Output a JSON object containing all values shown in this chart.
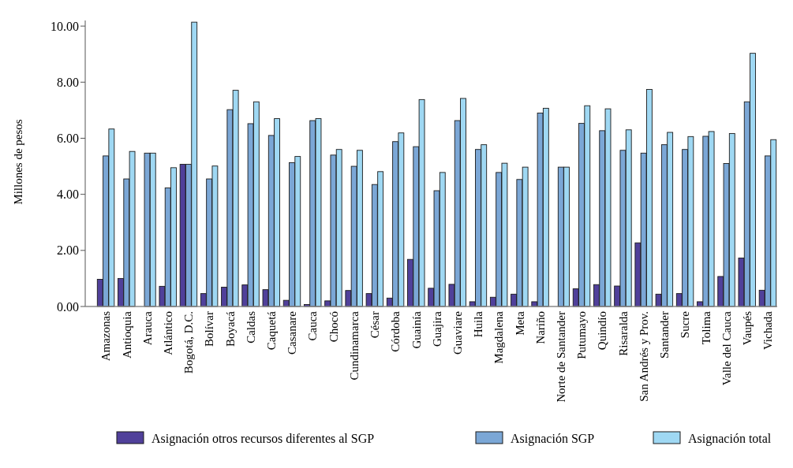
{
  "chart_data": {
    "type": "bar",
    "ylabel": "Millones de pesos",
    "categories": [
      "Amazonas",
      "Antioquia",
      "Arauca",
      "Atlántico",
      "Bogotá, D.C.",
      "Bolívar",
      "Boyacá",
      "Caldas",
      "Caquetá",
      "Casanare",
      "Cauca",
      "Chocó",
      "Cundinamarca",
      "César",
      "Córdoba",
      "Guainía",
      "Guajira",
      "Guaviare",
      "Huila",
      "Magdalena",
      "Meta",
      "Nariño",
      "Norte de Santander",
      "Putumayo",
      "Quindío",
      "Risaralda",
      "San Andrés y Prov.",
      "Santander",
      "Sucre",
      "Tolima",
      "Valle del Cauca",
      "Vaupés",
      "Vichada"
    ],
    "series": [
      {
        "name": "Asignación otros recursos diferentes al SGP",
        "color": "#50409a",
        "values": [
          0.97,
          1.0,
          0,
          0.72,
          5.07,
          0.46,
          0.69,
          0.77,
          0.6,
          0.22,
          0.07,
          0.2,
          0.57,
          0.46,
          0.3,
          1.68,
          0.65,
          0.79,
          0.17,
          0.33,
          0.44,
          0.17,
          0,
          0.63,
          0.78,
          0.73,
          2.27,
          0.44,
          0.46,
          0.17,
          1.07,
          1.73,
          0.58
        ]
      },
      {
        "name": "Asignación SGP",
        "color": "#7ba7d6",
        "values": [
          5.37,
          4.55,
          5.47,
          4.23,
          5.07,
          4.55,
          7.02,
          6.52,
          6.1,
          5.13,
          6.63,
          5.4,
          5.0,
          4.35,
          5.88,
          5.7,
          4.13,
          6.63,
          5.6,
          4.78,
          4.53,
          6.9,
          4.97,
          6.53,
          6.27,
          5.57,
          5.47,
          5.77,
          5.6,
          6.07,
          5.1,
          7.3,
          5.37
        ]
      },
      {
        "name": "Asignación total",
        "color": "#9fd8f3",
        "values": [
          6.33,
          5.53,
          5.47,
          4.95,
          10.14,
          5.01,
          7.71,
          7.3,
          6.7,
          5.35,
          6.7,
          5.6,
          5.57,
          4.81,
          6.19,
          7.38,
          4.78,
          7.42,
          5.77,
          5.11,
          4.97,
          7.07,
          4.97,
          7.16,
          7.05,
          6.3,
          7.74,
          6.21,
          6.06,
          6.24,
          6.17,
          9.03,
          5.95
        ]
      }
    ],
    "ylim": [
      0,
      10.2
    ],
    "yticks": [
      {
        "value": 0,
        "label": "0.00"
      },
      {
        "value": 2,
        "label": "2.00"
      },
      {
        "value": 4,
        "label": "4.00"
      },
      {
        "value": 6,
        "label": "6.00"
      },
      {
        "value": 8,
        "label": "8.00"
      },
      {
        "value": 10,
        "label": "10.00"
      }
    ],
    "grid": false,
    "legend": "bottom"
  }
}
